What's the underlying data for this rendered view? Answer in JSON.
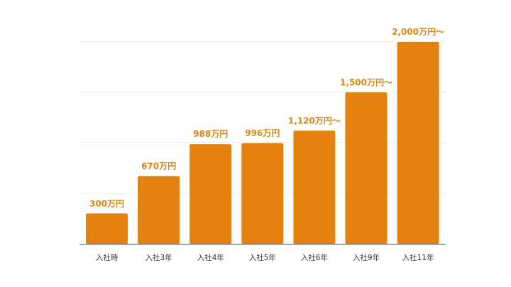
{
  "chart_data": {
    "type": "bar",
    "categories": [
      "入社時",
      "入社3年",
      "入社4年",
      "入社5年",
      "入社6年",
      "入社9年",
      "入社11年"
    ],
    "values": [
      300,
      670,
      988,
      996,
      1120,
      1500,
      2000
    ],
    "data_labels": [
      "300万円",
      "670万円",
      "988万円",
      "996万円",
      "1,120万円～",
      "1,500万円～",
      "2,000万円～"
    ],
    "ylim": [
      0,
      2000
    ],
    "grid": true,
    "gridlines": [
      500,
      1000,
      1500,
      2000
    ],
    "colors": {
      "bar": "#e5820f",
      "label": "#d98512",
      "grid": "#ebebeb",
      "axis": "#444444"
    }
  }
}
